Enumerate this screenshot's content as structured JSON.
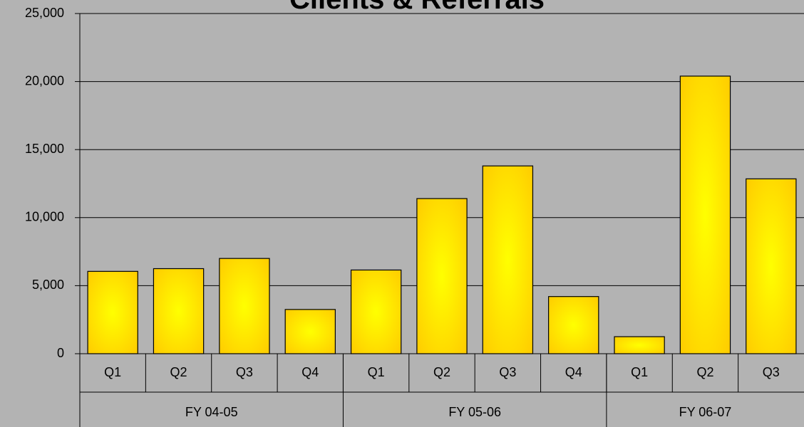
{
  "chart_data": {
    "type": "bar",
    "title": "Clients & Referrals",
    "categories": [
      "Q1",
      "Q2",
      "Q3",
      "Q4",
      "Q1",
      "Q2",
      "Q3",
      "Q4",
      "Q1",
      "Q2",
      "Q3"
    ],
    "groups": [
      {
        "name": "FY 04-05",
        "count": 4
      },
      {
        "name": "FY 05-06",
        "count": 4
      },
      {
        "name": "FY 06-07",
        "count": 3
      }
    ],
    "values": [
      6050,
      6250,
      7000,
      3250,
      6150,
      11400,
      13800,
      4200,
      1250,
      20400,
      12850
    ],
    "color": "#ffee00",
    "ylim": [
      0,
      25000
    ],
    "yticks": [
      0,
      {
        "value": 5000,
        "label": "5,000"
      },
      {
        "value": 10000,
        "label": "10,000"
      },
      {
        "value": 15000,
        "label": "15,000"
      },
      {
        "value": 20000,
        "label": "20,000"
      },
      {
        "value": 25000,
        "label": "25,000"
      }
    ],
    "grid": true
  }
}
